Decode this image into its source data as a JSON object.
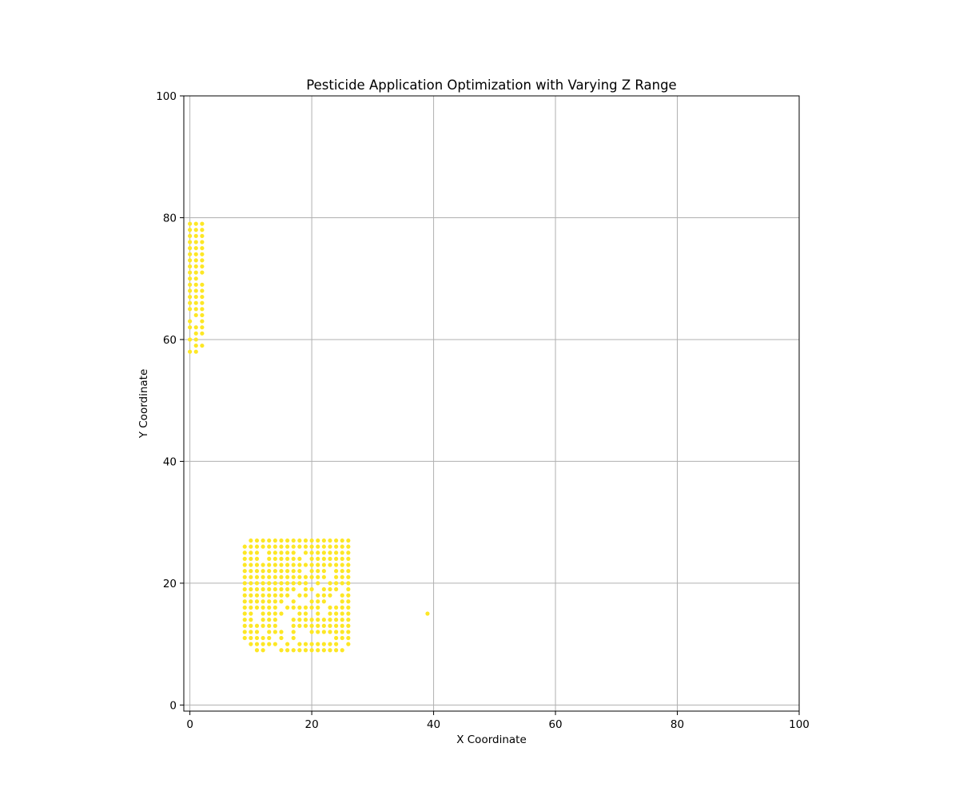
{
  "chart_data": {
    "type": "scatter",
    "title": "Pesticide Application Optimization with Varying Z Range",
    "xlabel": "X Coordinate",
    "ylabel": "Y Coordinate",
    "xlim": [
      -1,
      100
    ],
    "ylim": [
      -1,
      100
    ],
    "xticks": [
      0,
      20,
      40,
      60,
      80,
      100
    ],
    "yticks": [
      0,
      20,
      40,
      60,
      80,
      100
    ],
    "grid": true,
    "point_color": "#fde725",
    "series": [
      {
        "points": [
          [
            0,
            58
          ],
          [
            1,
            58
          ],
          [
            1,
            59
          ],
          [
            2,
            59
          ],
          [
            0,
            60
          ],
          [
            1,
            60
          ],
          [
            1,
            61
          ],
          [
            2,
            61
          ],
          [
            0,
            62
          ],
          [
            1,
            62
          ],
          [
            2,
            62
          ],
          [
            0,
            63
          ],
          [
            2,
            63
          ],
          [
            1,
            64
          ],
          [
            2,
            64
          ],
          [
            0,
            65
          ],
          [
            1,
            65
          ],
          [
            2,
            65
          ],
          [
            0,
            66
          ],
          [
            1,
            66
          ],
          [
            2,
            66
          ],
          [
            0,
            67
          ],
          [
            1,
            67
          ],
          [
            2,
            67
          ],
          [
            0,
            68
          ],
          [
            1,
            68
          ],
          [
            2,
            68
          ],
          [
            0,
            69
          ],
          [
            1,
            69
          ],
          [
            2,
            69
          ],
          [
            0,
            70
          ],
          [
            1,
            70
          ],
          [
            0,
            71
          ],
          [
            1,
            71
          ],
          [
            2,
            71
          ],
          [
            0,
            72
          ],
          [
            1,
            72
          ],
          [
            2,
            72
          ],
          [
            0,
            73
          ],
          [
            1,
            73
          ],
          [
            2,
            73
          ],
          [
            0,
            74
          ],
          [
            1,
            74
          ],
          [
            2,
            74
          ],
          [
            0,
            75
          ],
          [
            1,
            75
          ],
          [
            2,
            75
          ],
          [
            0,
            76
          ],
          [
            1,
            76
          ],
          [
            2,
            76
          ],
          [
            0,
            77
          ],
          [
            1,
            77
          ],
          [
            2,
            77
          ],
          [
            0,
            78
          ],
          [
            1,
            78
          ],
          [
            2,
            78
          ],
          [
            0,
            79
          ],
          [
            1,
            79
          ],
          [
            2,
            79
          ],
          [
            11,
            9
          ],
          [
            12,
            9
          ],
          [
            15,
            9
          ],
          [
            16,
            9
          ],
          [
            17,
            9
          ],
          [
            18,
            9
          ],
          [
            19,
            9
          ],
          [
            20,
            9
          ],
          [
            21,
            9
          ],
          [
            22,
            9
          ],
          [
            23,
            9
          ],
          [
            24,
            9
          ],
          [
            25,
            9
          ],
          [
            10,
            10
          ],
          [
            11,
            10
          ],
          [
            12,
            10
          ],
          [
            13,
            10
          ],
          [
            14,
            10
          ],
          [
            16,
            10
          ],
          [
            18,
            10
          ],
          [
            19,
            10
          ],
          [
            20,
            10
          ],
          [
            21,
            10
          ],
          [
            22,
            10
          ],
          [
            23,
            10
          ],
          [
            24,
            10
          ],
          [
            26,
            10
          ],
          [
            9,
            11
          ],
          [
            10,
            11
          ],
          [
            11,
            11
          ],
          [
            12,
            11
          ],
          [
            13,
            11
          ],
          [
            15,
            11
          ],
          [
            17,
            11
          ],
          [
            24,
            11
          ],
          [
            25,
            11
          ],
          [
            26,
            11
          ],
          [
            9,
            12
          ],
          [
            10,
            12
          ],
          [
            11,
            12
          ],
          [
            13,
            12
          ],
          [
            14,
            12
          ],
          [
            15,
            12
          ],
          [
            17,
            12
          ],
          [
            20,
            12
          ],
          [
            21,
            12
          ],
          [
            22,
            12
          ],
          [
            23,
            12
          ],
          [
            24,
            12
          ],
          [
            25,
            12
          ],
          [
            26,
            12
          ],
          [
            9,
            13
          ],
          [
            10,
            13
          ],
          [
            11,
            13
          ],
          [
            12,
            13
          ],
          [
            13,
            13
          ],
          [
            14,
            13
          ],
          [
            17,
            13
          ],
          [
            18,
            13
          ],
          [
            19,
            13
          ],
          [
            20,
            13
          ],
          [
            21,
            13
          ],
          [
            22,
            13
          ],
          [
            23,
            13
          ],
          [
            24,
            13
          ],
          [
            25,
            13
          ],
          [
            26,
            13
          ],
          [
            9,
            14
          ],
          [
            10,
            14
          ],
          [
            12,
            14
          ],
          [
            13,
            14
          ],
          [
            14,
            14
          ],
          [
            17,
            14
          ],
          [
            18,
            14
          ],
          [
            19,
            14
          ],
          [
            20,
            14
          ],
          [
            21,
            14
          ],
          [
            22,
            14
          ],
          [
            23,
            14
          ],
          [
            24,
            14
          ],
          [
            25,
            14
          ],
          [
            26,
            14
          ],
          [
            9,
            15
          ],
          [
            10,
            15
          ],
          [
            12,
            15
          ],
          [
            13,
            15
          ],
          [
            14,
            15
          ],
          [
            15,
            15
          ],
          [
            18,
            15
          ],
          [
            19,
            15
          ],
          [
            21,
            15
          ],
          [
            23,
            15
          ],
          [
            24,
            15
          ],
          [
            25,
            15
          ],
          [
            26,
            15
          ],
          [
            9,
            16
          ],
          [
            10,
            16
          ],
          [
            11,
            16
          ],
          [
            12,
            16
          ],
          [
            13,
            16
          ],
          [
            14,
            16
          ],
          [
            16,
            16
          ],
          [
            17,
            16
          ],
          [
            18,
            16
          ],
          [
            19,
            16
          ],
          [
            20,
            16
          ],
          [
            21,
            16
          ],
          [
            23,
            16
          ],
          [
            24,
            16
          ],
          [
            25,
            16
          ],
          [
            26,
            16
          ],
          [
            9,
            17
          ],
          [
            10,
            17
          ],
          [
            11,
            17
          ],
          [
            12,
            17
          ],
          [
            13,
            17
          ],
          [
            14,
            17
          ],
          [
            15,
            17
          ],
          [
            17,
            17
          ],
          [
            20,
            17
          ],
          [
            21,
            17
          ],
          [
            22,
            17
          ],
          [
            25,
            17
          ],
          [
            26,
            17
          ],
          [
            9,
            18
          ],
          [
            10,
            18
          ],
          [
            11,
            18
          ],
          [
            12,
            18
          ],
          [
            13,
            18
          ],
          [
            14,
            18
          ],
          [
            15,
            18
          ],
          [
            16,
            18
          ],
          [
            18,
            18
          ],
          [
            19,
            18
          ],
          [
            21,
            18
          ],
          [
            22,
            18
          ],
          [
            23,
            18
          ],
          [
            25,
            18
          ],
          [
            26,
            18
          ],
          [
            9,
            19
          ],
          [
            10,
            19
          ],
          [
            11,
            19
          ],
          [
            12,
            19
          ],
          [
            13,
            19
          ],
          [
            14,
            19
          ],
          [
            15,
            19
          ],
          [
            16,
            19
          ],
          [
            17,
            19
          ],
          [
            19,
            19
          ],
          [
            20,
            19
          ],
          [
            22,
            19
          ],
          [
            23,
            19
          ],
          [
            24,
            19
          ],
          [
            26,
            19
          ],
          [
            9,
            20
          ],
          [
            10,
            20
          ],
          [
            11,
            20
          ],
          [
            12,
            20
          ],
          [
            13,
            20
          ],
          [
            14,
            20
          ],
          [
            15,
            20
          ],
          [
            16,
            20
          ],
          [
            17,
            20
          ],
          [
            18,
            20
          ],
          [
            19,
            20
          ],
          [
            21,
            20
          ],
          [
            23,
            20
          ],
          [
            24,
            20
          ],
          [
            25,
            20
          ],
          [
            26,
            20
          ],
          [
            9,
            21
          ],
          [
            10,
            21
          ],
          [
            11,
            21
          ],
          [
            12,
            21
          ],
          [
            13,
            21
          ],
          [
            14,
            21
          ],
          [
            15,
            21
          ],
          [
            16,
            21
          ],
          [
            17,
            21
          ],
          [
            18,
            21
          ],
          [
            19,
            21
          ],
          [
            20,
            21
          ],
          [
            21,
            21
          ],
          [
            22,
            21
          ],
          [
            24,
            21
          ],
          [
            25,
            21
          ],
          [
            26,
            21
          ],
          [
            9,
            22
          ],
          [
            10,
            22
          ],
          [
            11,
            22
          ],
          [
            12,
            22
          ],
          [
            13,
            22
          ],
          [
            14,
            22
          ],
          [
            15,
            22
          ],
          [
            16,
            22
          ],
          [
            17,
            22
          ],
          [
            18,
            22
          ],
          [
            20,
            22
          ],
          [
            21,
            22
          ],
          [
            22,
            22
          ],
          [
            24,
            22
          ],
          [
            25,
            22
          ],
          [
            26,
            22
          ],
          [
            9,
            23
          ],
          [
            10,
            23
          ],
          [
            11,
            23
          ],
          [
            12,
            23
          ],
          [
            13,
            23
          ],
          [
            14,
            23
          ],
          [
            15,
            23
          ],
          [
            16,
            23
          ],
          [
            17,
            23
          ],
          [
            18,
            23
          ],
          [
            19,
            23
          ],
          [
            20,
            23
          ],
          [
            21,
            23
          ],
          [
            22,
            23
          ],
          [
            23,
            23
          ],
          [
            24,
            23
          ],
          [
            25,
            23
          ],
          [
            26,
            23
          ],
          [
            9,
            24
          ],
          [
            10,
            24
          ],
          [
            11,
            24
          ],
          [
            13,
            24
          ],
          [
            14,
            24
          ],
          [
            15,
            24
          ],
          [
            16,
            24
          ],
          [
            17,
            24
          ],
          [
            18,
            24
          ],
          [
            20,
            24
          ],
          [
            21,
            24
          ],
          [
            22,
            24
          ],
          [
            23,
            24
          ],
          [
            24,
            24
          ],
          [
            25,
            24
          ],
          [
            26,
            24
          ],
          [
            9,
            25
          ],
          [
            10,
            25
          ],
          [
            11,
            25
          ],
          [
            13,
            25
          ],
          [
            14,
            25
          ],
          [
            15,
            25
          ],
          [
            16,
            25
          ],
          [
            17,
            25
          ],
          [
            19,
            25
          ],
          [
            20,
            25
          ],
          [
            21,
            25
          ],
          [
            22,
            25
          ],
          [
            23,
            25
          ],
          [
            24,
            25
          ],
          [
            25,
            25
          ],
          [
            26,
            25
          ],
          [
            9,
            26
          ],
          [
            10,
            26
          ],
          [
            11,
            26
          ],
          [
            12,
            26
          ],
          [
            13,
            26
          ],
          [
            14,
            26
          ],
          [
            15,
            26
          ],
          [
            16,
            26
          ],
          [
            17,
            26
          ],
          [
            18,
            26
          ],
          [
            19,
            26
          ],
          [
            20,
            26
          ],
          [
            21,
            26
          ],
          [
            22,
            26
          ],
          [
            23,
            26
          ],
          [
            24,
            26
          ],
          [
            25,
            26
          ],
          [
            26,
            26
          ],
          [
            10,
            27
          ],
          [
            11,
            27
          ],
          [
            12,
            27
          ],
          [
            13,
            27
          ],
          [
            14,
            27
          ],
          [
            15,
            27
          ],
          [
            16,
            27
          ],
          [
            17,
            27
          ],
          [
            18,
            27
          ],
          [
            19,
            27
          ],
          [
            20,
            27
          ],
          [
            21,
            27
          ],
          [
            22,
            27
          ],
          [
            23,
            27
          ],
          [
            24,
            27
          ],
          [
            25,
            27
          ],
          [
            26,
            27
          ],
          [
            39,
            15
          ]
        ]
      }
    ]
  }
}
